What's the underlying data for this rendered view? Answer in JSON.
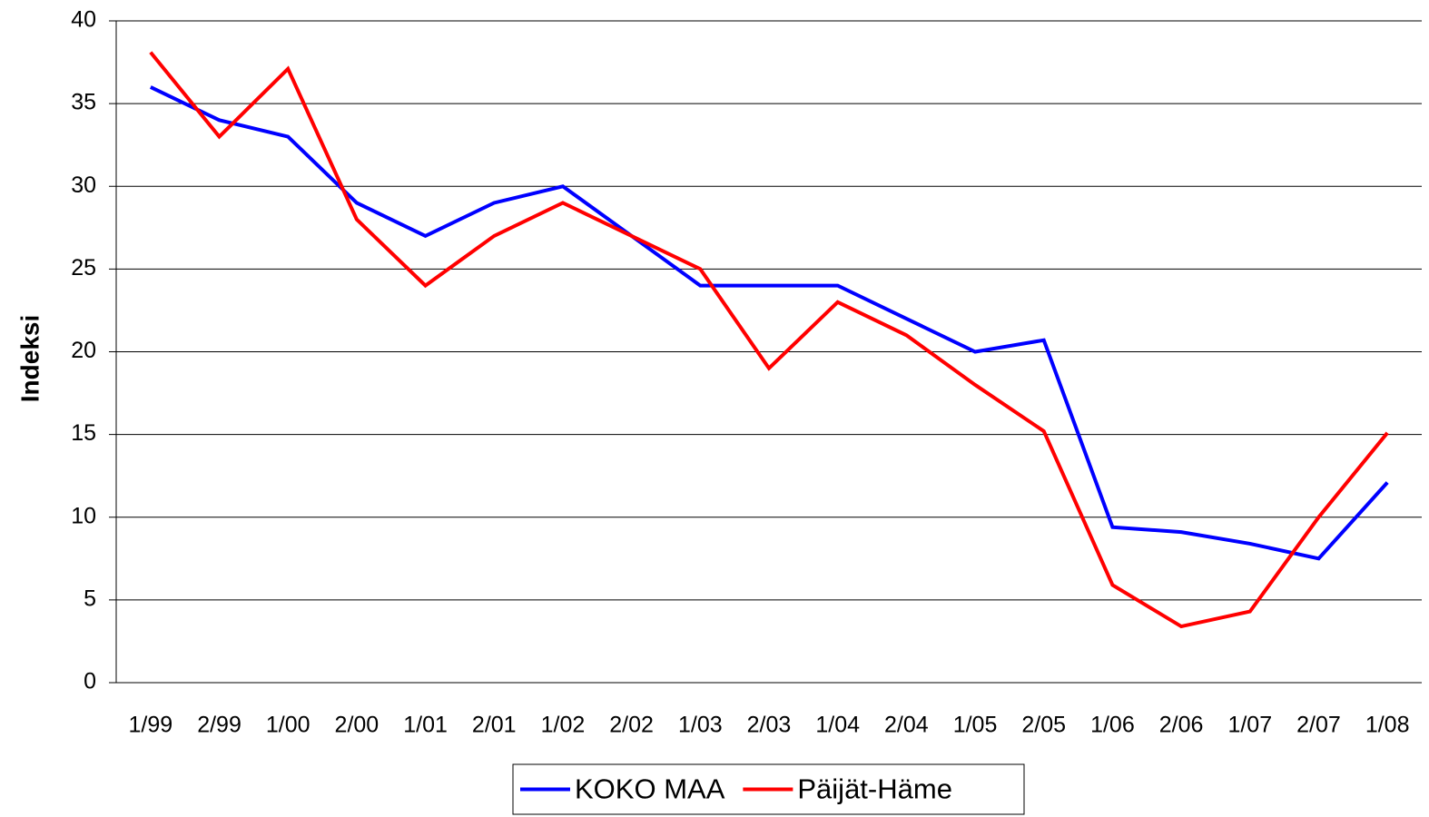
{
  "chart_data": {
    "type": "line",
    "y_label": "Indeksi",
    "categories": [
      "1/99",
      "2/99",
      "1/00",
      "2/00",
      "1/01",
      "2/01",
      "1/02",
      "2/02",
      "1/03",
      "2/03",
      "1/04",
      "2/04",
      "1/05",
      "2/05",
      "1/06",
      "2/06",
      "1/07",
      "2/07",
      "1/08"
    ],
    "series": [
      {
        "name": "KOKO MAA",
        "color": "#0000ff",
        "values": [
          36,
          34,
          33,
          29,
          27,
          29,
          30,
          27,
          24,
          24,
          24,
          22,
          20,
          20.7,
          9.4,
          9.1,
          8.4,
          7.5,
          12.1
        ]
      },
      {
        "name": "Päijät-Häme",
        "color": "#ff0000",
        "values": [
          38.1,
          33,
          37.1,
          28,
          24,
          27,
          29,
          27,
          25,
          19,
          23,
          21,
          18,
          15.2,
          5.9,
          3.4,
          4.3,
          10,
          15.1
        ]
      }
    ],
    "ylim": [
      0,
      40
    ],
    "yticks": [
      0,
      5,
      10,
      15,
      20,
      25,
      30,
      35,
      40
    ],
    "grid": true,
    "legend": "bottom"
  }
}
